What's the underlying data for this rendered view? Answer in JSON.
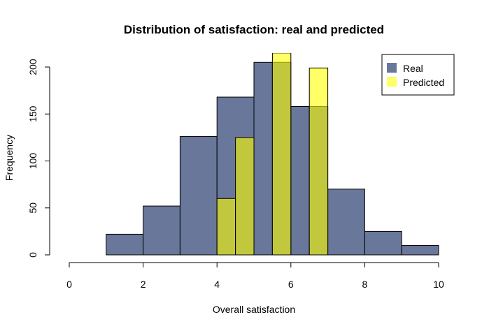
{
  "chart_data": {
    "type": "bar",
    "title": "Distribution of satisfaction: real and predicted",
    "xlabel": "Overall satisfaction",
    "ylabel": "Frequency",
    "xlim": [
      0,
      10
    ],
    "ylim": [
      0,
      200
    ],
    "x_ticks": [
      "0",
      "2",
      "4",
      "6",
      "8",
      "10"
    ],
    "y_ticks": [
      "0",
      "50",
      "100",
      "150",
      "200"
    ],
    "grid": false,
    "legend_position": "top-right",
    "series": [
      {
        "name": "Real",
        "color": "#68779a",
        "opacity": 1.0,
        "bins": [
          {
            "x0": 1,
            "x1": 2,
            "value": 22
          },
          {
            "x0": 2,
            "x1": 3,
            "value": 52
          },
          {
            "x0": 3,
            "x1": 4,
            "value": 126
          },
          {
            "x0": 4,
            "x1": 5,
            "value": 168
          },
          {
            "x0": 5,
            "x1": 5.5,
            "value": 205
          },
          {
            "x0": 5.5,
            "x1": 6,
            "value": 205
          },
          {
            "x0": 6,
            "x1": 6.5,
            "value": 158
          },
          {
            "x0": 6.5,
            "x1": 7,
            "value": 158
          },
          {
            "x0": 7,
            "x1": 8,
            "value": 70
          },
          {
            "x0": 8,
            "x1": 9,
            "value": 25
          },
          {
            "x0": 9,
            "x1": 10,
            "value": 10
          }
        ]
      },
      {
        "name": "Predicted",
        "color": "#ffff00",
        "opacity": 0.6,
        "bins": [
          {
            "x0": 4,
            "x1": 4.5,
            "value": 60
          },
          {
            "x0": 4.5,
            "x1": 5,
            "value": 125
          },
          {
            "x0": 5.5,
            "x1": 6,
            "value": 215
          },
          {
            "x0": 6.5,
            "x1": 7,
            "value": 199
          }
        ]
      }
    ]
  }
}
